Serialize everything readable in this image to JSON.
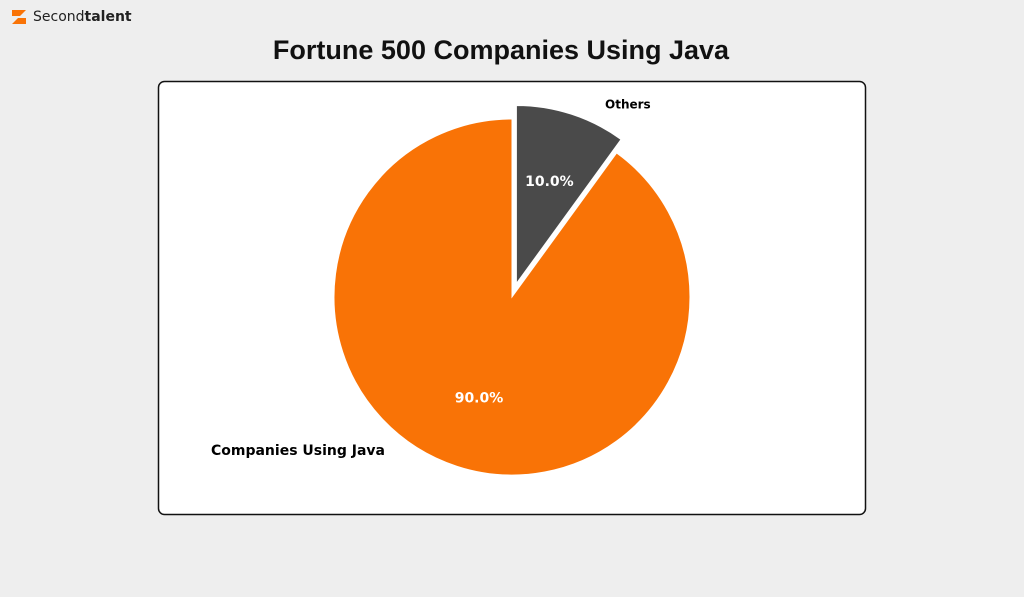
{
  "brand": [
    "Second",
    "talent"
  ],
  "chart_data": {
    "type": "pie",
    "title": "Fortune 500 Companies Using Java",
    "categories": [
      "Companies Using Java",
      "Others"
    ],
    "values": [
      90,
      10
    ],
    "value_labels": [
      "90.0%",
      "10.0%"
    ],
    "colors": [
      "#f97306",
      "#4a4a4a"
    ]
  }
}
